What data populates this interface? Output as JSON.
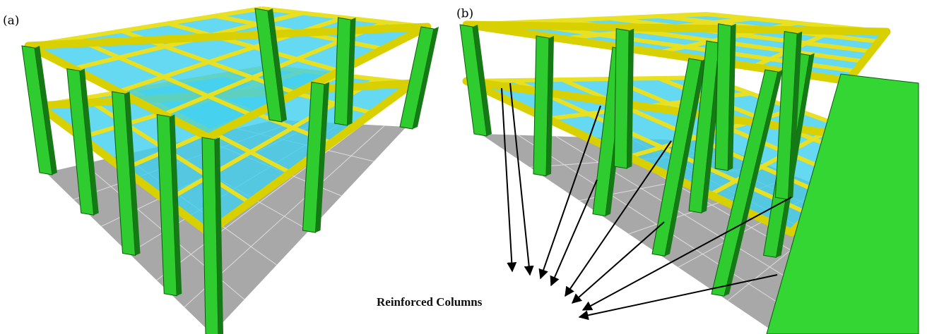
{
  "panels": [
    {
      "label": "(a)"
    },
    {
      "label": "(b)"
    }
  ],
  "annotation": "Reinforced Columns"
}
